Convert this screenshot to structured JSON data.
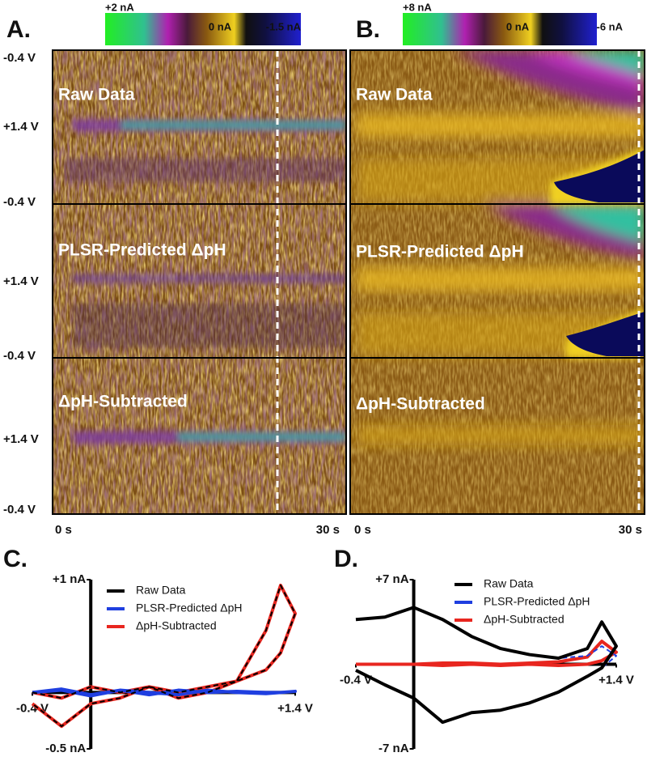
{
  "panels": [
    {
      "label": "A.",
      "colorbar": [
        "+2 nA",
        "0 nA",
        "-1.5 nA"
      ],
      "rows": [
        "Raw Data",
        "PLSR-Predicted ΔpH",
        "ΔpH-Subtracted"
      ],
      "x_labels": [
        "0 s",
        "30 s"
      ]
    },
    {
      "label": "B.",
      "colorbar": [
        "+8 nA",
        "0 nA",
        "-6 nA"
      ],
      "rows": [
        "Raw Data",
        "PLSR-Predicted ΔpH",
        "ΔpH-Subtracted"
      ],
      "x_labels": [
        "0 s",
        "30 s"
      ]
    }
  ],
  "voltage_labels": [
    "-0.4 V",
    "+1.4 V",
    "-0.4 V",
    "+1.4 V",
    "-0.4 V",
    "+1.4 V",
    "-0.4 V"
  ],
  "chart_data": [
    {
      "type": "line",
      "panel_label": "C.",
      "xlim": [
        -0.4,
        1.4
      ],
      "ylim": [
        -0.5,
        1
      ],
      "xticks": [
        {
          "value": -0.4,
          "label": "-0.4 V"
        },
        {
          "value": 1.4,
          "label": "+1.4 V"
        }
      ],
      "yticks": [
        {
          "value": 1,
          "label": "+1 nA"
        },
        {
          "value": -0.5,
          "label": "-0.5 nA"
        }
      ],
      "x": [
        -0.4,
        -0.2,
        0,
        0.2,
        0.4,
        0.6,
        0.8,
        1,
        1.2,
        1.3,
        1.4,
        1.3,
        1.2,
        1,
        0.8,
        0.6,
        0.4,
        0.2,
        0,
        -0.2,
        -0.4
      ],
      "series": [
        {
          "name": "Raw Data",
          "color": "#000000",
          "style": "dashed",
          "values": [
            0,
            -0.05,
            0.05,
            0,
            0.05,
            0,
            0.05,
            0.1,
            0.55,
            0.95,
            0.7,
            0.35,
            0.2,
            0.1,
            0,
            -0.05,
            0.05,
            -0.05,
            -0.1,
            -0.3,
            -0.1
          ]
        },
        {
          "name": "PLSR-Predicted ΔpH",
          "color": "#1f3fe0",
          "style": "solid",
          "values": [
            0,
            0.02,
            -0.03,
            0.02,
            -0.02,
            0.02,
            0,
            0.01,
            0,
            0,
            0.01,
            0,
            -0.01,
            0,
            0.02,
            -0.02,
            0,
            0.02,
            -0.02,
            0.03,
            0
          ]
        },
        {
          "name": "ΔpH-Subtracted",
          "color": "#e8261f",
          "style": "solid",
          "values": [
            0,
            -0.05,
            0.05,
            0,
            0.05,
            0,
            0.05,
            0.1,
            0.55,
            0.95,
            0.7,
            0.35,
            0.2,
            0.1,
            0,
            -0.05,
            0.05,
            -0.05,
            -0.1,
            -0.3,
            -0.1
          ]
        }
      ]
    },
    {
      "type": "line",
      "panel_label": "D.",
      "xlim": [
        -0.4,
        1.4
      ],
      "ylim": [
        -7,
        7
      ],
      "xticks": [
        {
          "value": -0.4,
          "label": "-0.4 V"
        },
        {
          "value": 1.4,
          "label": "+1.4 V"
        }
      ],
      "yticks": [
        {
          "value": 7,
          "label": "+7 nA"
        },
        {
          "value": -7,
          "label": "-7 nA"
        }
      ],
      "x": [
        -0.4,
        -0.2,
        0,
        0.2,
        0.4,
        0.6,
        0.8,
        1,
        1.2,
        1.3,
        1.4,
        1.3,
        1.2,
        1,
        0.8,
        0.6,
        0.4,
        0.2,
        0,
        -0.2,
        -0.4
      ],
      "series": [
        {
          "name": "Raw Data",
          "color": "#000000",
          "style": "solid",
          "values": [
            3.7,
            3.9,
            4.7,
            3.7,
            2.3,
            1.3,
            0.8,
            0.5,
            1.3,
            3.5,
            1.5,
            -0.3,
            -1,
            -2.3,
            -3.2,
            -3.8,
            -4,
            -4.8,
            -2.8,
            -1.7,
            -0.5
          ]
        },
        {
          "name": "PLSR-Predicted ΔpH",
          "color": "#1f3fe0",
          "style": "dashed",
          "values": [
            3.7,
            3.9,
            4.7,
            3.7,
            2.3,
            1.3,
            0.8,
            0.5,
            0.7,
            1.5,
            0.7,
            -0.3,
            -1,
            -2.3,
            -3.2,
            -3.8,
            -4,
            -4.8,
            -2.8,
            -1.7,
            -0.5
          ]
        },
        {
          "name": "ΔpH-Subtracted",
          "color": "#e8261f",
          "style": "solid",
          "values": [
            0,
            0,
            0,
            0.1,
            0.1,
            0,
            0.1,
            0.2,
            0.6,
            1.9,
            1,
            0.3,
            0,
            -0.1,
            0,
            -0.1,
            0,
            -0.1,
            0,
            0,
            0
          ]
        }
      ]
    }
  ]
}
